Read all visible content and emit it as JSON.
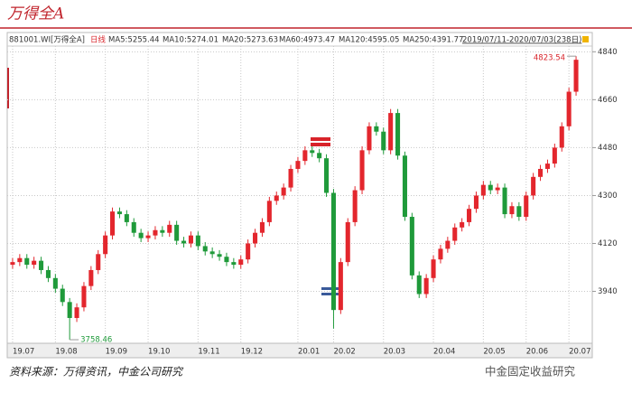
{
  "chart_data": {
    "type": "candlestick",
    "title": "万得全A",
    "header": [
      "881001.WI",
      "[万得全A]",
      "日线",
      "MA5:5255.44",
      "MA10:5274.01",
      "MA20:5273.63",
      "MA60:4973.47",
      "MA120:4595.05",
      "MA250:4391.77"
    ],
    "date_range": "2019/07/11-2020/07/03(238日)",
    "annotations": [
      "4823.54",
      "3758.46"
    ],
    "source": "资料来源：万得资讯，中金公司研究",
    "watermark": "中金固定收益研究",
    "up_color": "#e3262d",
    "down_color": "#1f9a3a",
    "open": [
      4040,
      4050,
      4065,
      4040,
      4055,
      4020,
      3990,
      3950,
      3900,
      3840,
      3880,
      3960,
      4020,
      4080,
      4150,
      4240,
      4230,
      4200,
      4160,
      4140,
      4150,
      4170,
      4160,
      4190,
      4130,
      4120,
      4150,
      4110,
      4090,
      4080,
      4070,
      4050,
      4040,
      4060,
      4120,
      4160,
      4200,
      4280,
      4300,
      4330,
      4400,
      4430,
      4470,
      4460,
      4440,
      4310,
      3870,
      4050,
      4200,
      4320,
      4470,
      4560,
      4540,
      4470,
      4610,
      4450,
      4220,
      4000,
      3930,
      3990,
      4060,
      4100,
      4130,
      4180,
      4200,
      4250,
      4300,
      4340,
      4320,
      4330,
      4230,
      4260,
      4220,
      4300,
      4370,
      4400,
      4420,
      4480,
      4560,
      4690
    ],
    "high": [
      4065,
      4080,
      4080,
      4070,
      4070,
      4035,
      4005,
      3965,
      3915,
      3895,
      3975,
      4035,
      4095,
      4165,
      4255,
      4255,
      4245,
      4215,
      4175,
      4165,
      4185,
      4185,
      4205,
      4205,
      4145,
      4165,
      4165,
      4125,
      4105,
      4095,
      4085,
      4065,
      4075,
      4135,
      4175,
      4215,
      4295,
      4315,
      4345,
      4415,
      4445,
      4485,
      4485,
      4475,
      4455,
      4325,
      4065,
      4215,
      4335,
      4485,
      4575,
      4575,
      4555,
      4625,
      4625,
      4465,
      4235,
      4015,
      4005,
      4075,
      4115,
      4145,
      4195,
      4215,
      4265,
      4315,
      4355,
      4355,
      4345,
      4345,
      4275,
      4275,
      4315,
      4385,
      4415,
      4435,
      4495,
      4575,
      4705,
      4823.54
    ],
    "low": [
      4025,
      4035,
      4025,
      4025,
      4005,
      3975,
      3935,
      3885,
      3758.46,
      3825,
      3865,
      3945,
      4005,
      4065,
      4135,
      4215,
      4185,
      4145,
      4125,
      4125,
      4135,
      4145,
      4145,
      4115,
      4105,
      4105,
      4095,
      4075,
      4065,
      4055,
      4035,
      4025,
      4025,
      4045,
      4105,
      4145,
      4185,
      4265,
      4285,
      4315,
      4385,
      4415,
      4445,
      4425,
      4295,
      3800,
      3855,
      4035,
      4185,
      4305,
      4455,
      4525,
      4455,
      4455,
      4435,
      4205,
      3985,
      3915,
      3915,
      3975,
      4045,
      4085,
      4115,
      4165,
      4185,
      4235,
      4285,
      4305,
      4305,
      4215,
      4215,
      4205,
      4205,
      4285,
      4355,
      4385,
      4405,
      4465,
      4545,
      4675
    ],
    "close": [
      4050,
      4065,
      4040,
      4055,
      4020,
      3990,
      3950,
      3900,
      3840,
      3880,
      3960,
      4020,
      4080,
      4150,
      4240,
      4230,
      4200,
      4160,
      4140,
      4150,
      4170,
      4160,
      4190,
      4130,
      4120,
      4150,
      4110,
      4090,
      4080,
      4070,
      4050,
      4040,
      4060,
      4120,
      4160,
      4200,
      4280,
      4300,
      4330,
      4400,
      4430,
      4470,
      4460,
      4440,
      4310,
      3870,
      4050,
      4200,
      4320,
      4470,
      4560,
      4540,
      4470,
      4610,
      4450,
      4220,
      4000,
      3930,
      3990,
      4060,
      4100,
      4130,
      4180,
      4200,
      4250,
      4300,
      4340,
      4320,
      4330,
      4230,
      4260,
      4220,
      4300,
      4370,
      4400,
      4420,
      4480,
      4560,
      4690,
      4810
    ],
    "ylim": [
      3745,
      4875
    ],
    "yticks": [
      3940,
      4120,
      4300,
      4480,
      4660,
      4840
    ],
    "xticks": [
      {
        "value": 0,
        "label": "19.07"
      },
      {
        "value": 6,
        "label": "19.08"
      },
      {
        "value": 13,
        "label": "19.09"
      },
      {
        "value": 19,
        "label": "19.10"
      },
      {
        "value": 26,
        "label": "19.11"
      },
      {
        "value": 32,
        "label": "19.12"
      },
      {
        "value": 40,
        "label": "20.01"
      },
      {
        "value": 45,
        "label": "20.02"
      },
      {
        "value": 52,
        "label": "20.03"
      },
      {
        "value": 59,
        "label": "20.04"
      },
      {
        "value": 66,
        "label": "20.05"
      },
      {
        "value": 72,
        "label": "20.06"
      },
      {
        "value": 78,
        "label": "20.07"
      }
    ],
    "grid": true
  }
}
